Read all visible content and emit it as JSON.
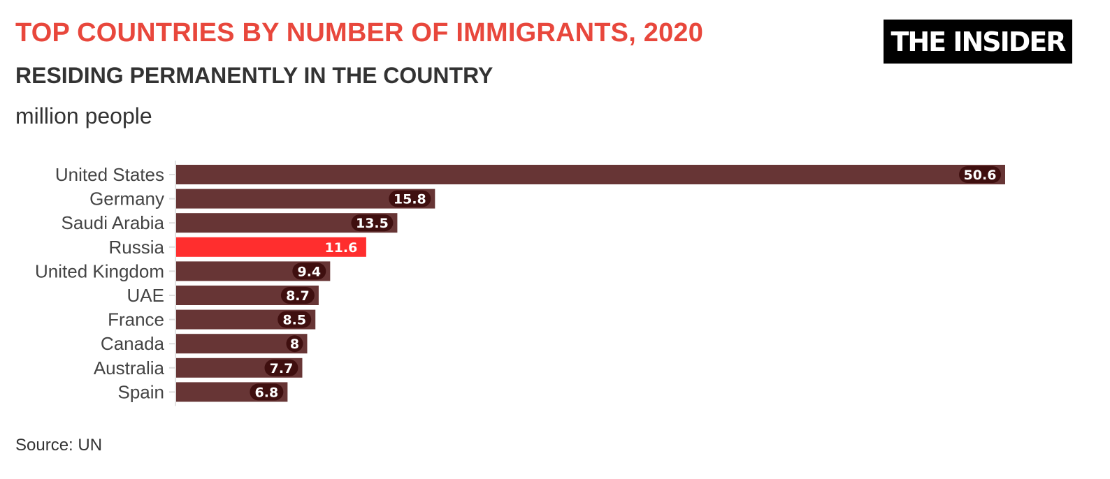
{
  "header": {
    "title": "TOP COUNTRIES BY NUMBER OF IMMIGRANTS, 2020",
    "subtitle": "RESIDING PERMANENTLY IN THE COUNTRY",
    "unit": "million people",
    "logo": "THE INSIDER",
    "source": "Source: UN"
  },
  "colors": {
    "title": "#e8473c",
    "bar": "#673535",
    "highlight_bar": "#ff2e2e",
    "label_bubble": "#3f0f0f"
  },
  "chart_data": {
    "type": "bar",
    "orientation": "horizontal",
    "title": "TOP COUNTRIES BY NUMBER OF IMMIGRANTS, 2020",
    "subtitle": "RESIDING PERMANENTLY IN THE COUNTRY",
    "unit": "million people",
    "categories": [
      "United States",
      "Germany",
      "Saudi Arabia",
      "Russia",
      "United Kingdom",
      "UAE",
      "France",
      "Canada",
      "Australia",
      "Spain"
    ],
    "values": [
      50.6,
      15.8,
      13.5,
      11.6,
      9.4,
      8.7,
      8.5,
      8,
      7.7,
      6.8
    ],
    "value_labels": [
      "50.6",
      "15.8",
      "13.5",
      "11.6",
      "9.4",
      "8.7",
      "8.5",
      "8",
      "7.7",
      "6.8"
    ],
    "highlight": "Russia",
    "xlim": [
      0,
      50.6
    ],
    "grid": false,
    "legend": "none",
    "source": "Source: UN"
  }
}
